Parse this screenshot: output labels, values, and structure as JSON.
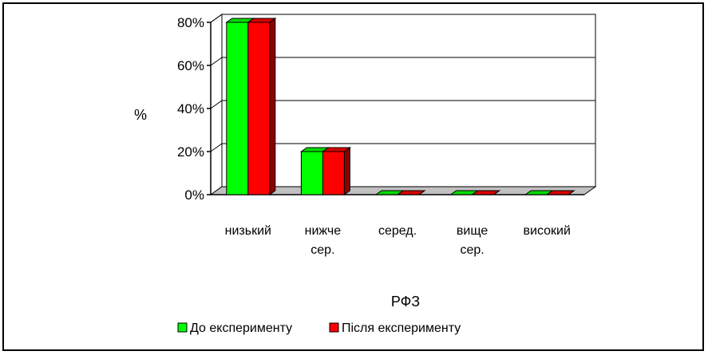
{
  "chart_data": {
    "type": "bar",
    "title": "",
    "xlabel": "РФЗ",
    "ylabel": "%",
    "y_ticks": [
      "0%",
      "20%",
      "40%",
      "60%",
      "80%"
    ],
    "ylim": [
      0,
      80
    ],
    "categories": [
      [
        "низький"
      ],
      [
        "нижче",
        "сер."
      ],
      [
        "серед."
      ],
      [
        "вище",
        "сер."
      ],
      [
        "високий"
      ]
    ],
    "series": [
      {
        "name": "До експерименту",
        "color": "#00ff00",
        "values": [
          80,
          20,
          0,
          0,
          0
        ]
      },
      {
        "name": "Після експерименту",
        "color": "#ff0000",
        "values": [
          80,
          20,
          0,
          0,
          0
        ]
      }
    ],
    "grid": true,
    "style": "3d",
    "legend_position": "bottom"
  }
}
